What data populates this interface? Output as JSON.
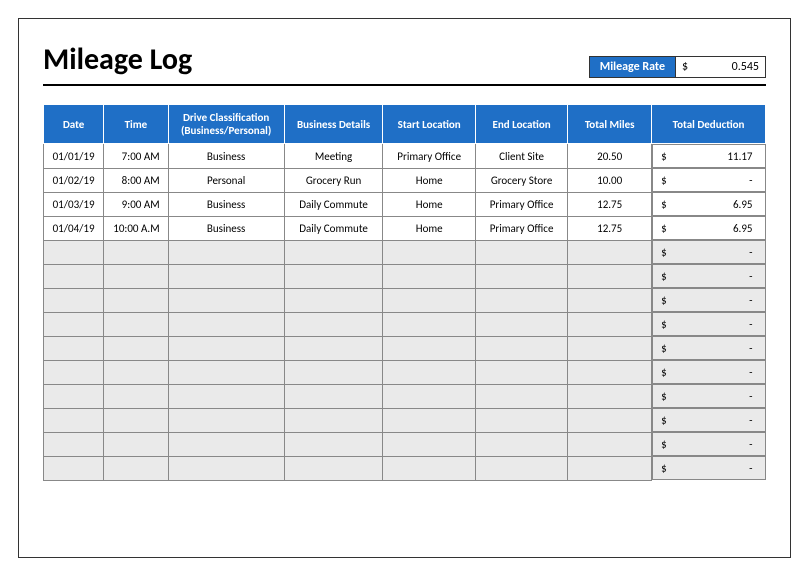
{
  "title": "Mileage Log",
  "rate_label": "Mileage Rate",
  "rate_symbol": "$",
  "rate_value": "0.545",
  "colors": {
    "header_bg": "#1f6fc6",
    "header_text": "#ffffff",
    "empty_row_bg": "#eaeaea",
    "border": "#888888",
    "frame_border": "#333333"
  },
  "columns": [
    "Date",
    "Time",
    "Drive Classification (Business/Personal)",
    "Business Details",
    "Start Location",
    "End Location",
    "Total Miles",
    "Total Deduction"
  ],
  "rows": [
    {
      "date": "01/01/19",
      "time": "7:00 AM",
      "class": "Business",
      "details": "Meeting",
      "start": "Primary Office",
      "end": "Client Site",
      "miles": "20.50",
      "ded": "11.17"
    },
    {
      "date": "01/02/19",
      "time": "8:00 AM",
      "class": "Personal",
      "details": "Grocery Run",
      "start": "Home",
      "end": "Grocery Store",
      "miles": "10.00",
      "ded": "-"
    },
    {
      "date": "01/03/19",
      "time": "9:00 AM",
      "class": "Business",
      "details": "Daily Commute",
      "start": "Home",
      "end": "Primary Office",
      "miles": "12.75",
      "ded": "6.95"
    },
    {
      "date": "01/04/19",
      "time": "10:00 A.M",
      "class": "Business",
      "details": "Daily Commute",
      "start": "Home",
      "end": "Primary Office",
      "miles": "12.75",
      "ded": "6.95"
    }
  ],
  "empty_row_count": 10,
  "deduction_symbol": "$",
  "empty_deduction": "-"
}
